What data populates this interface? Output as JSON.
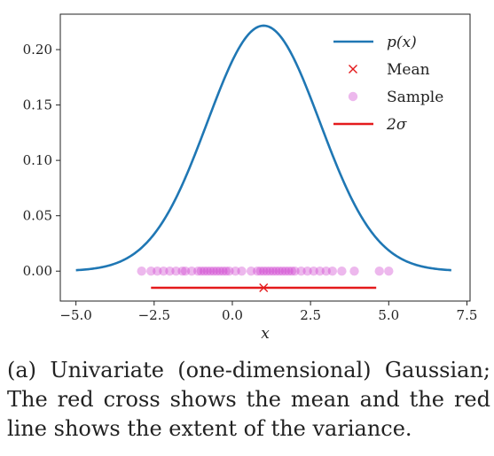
{
  "chart_data": {
    "type": "line",
    "title": "",
    "xlabel": "x",
    "ylabel": "",
    "xlim": [
      -5.5,
      7.6
    ],
    "ylim": [
      -0.027,
      0.232
    ],
    "x_ticks": [
      {
        "value": -5.0,
        "label": "−5.0"
      },
      {
        "value": -2.5,
        "label": "−2.5"
      },
      {
        "value": 0.0,
        "label": "0.0"
      },
      {
        "value": 2.5,
        "label": "2.5"
      },
      {
        "value": 5.0,
        "label": "5.0"
      },
      {
        "value": 7.5,
        "label": "7.5"
      }
    ],
    "y_ticks": [
      {
        "value": 0.0,
        "label": "0.00"
      },
      {
        "value": 0.05,
        "label": "0.05"
      },
      {
        "value": 0.1,
        "label": "0.10"
      },
      {
        "value": 0.15,
        "label": "0.15"
      },
      {
        "value": 0.2,
        "label": "0.20"
      }
    ],
    "grid": false,
    "legend_position": "top-right",
    "density": {
      "name": "p(x)",
      "color": "#1f77b4",
      "mean": 1.0,
      "sigma": 1.8,
      "x_range": [
        -5.0,
        7.0
      ]
    },
    "mean_marker": {
      "name": "Mean",
      "x": 1.0,
      "y": -0.015,
      "color": "#e41a1c"
    },
    "sample": {
      "name": "Sample",
      "color": "#cc33cc",
      "y": 0.0,
      "x": [
        -2.9,
        -2.6,
        -2.4,
        -2.2,
        -2.0,
        -1.8,
        -1.6,
        -1.5,
        -1.3,
        -1.1,
        -1.0,
        -0.9,
        -0.8,
        -0.7,
        -0.6,
        -0.5,
        -0.4,
        -0.3,
        -0.2,
        -0.1,
        0.1,
        0.3,
        0.6,
        0.8,
        0.9,
        1.0,
        1.1,
        1.2,
        1.3,
        1.4,
        1.5,
        1.6,
        1.7,
        1.8,
        1.9,
        2.0,
        2.2,
        2.4,
        2.6,
        2.8,
        3.0,
        3.2,
        3.5,
        3.9,
        4.7,
        5.0
      ]
    },
    "two_sigma": {
      "name": "2σ",
      "x": [
        -2.6,
        4.6
      ],
      "y": -0.015,
      "color": "#e41a1c"
    },
    "legend": [
      {
        "label": "p(x)",
        "kind": "line",
        "color": "#1f77b4",
        "math": true
      },
      {
        "label": "Mean",
        "kind": "cross",
        "color": "#e41a1c",
        "math": false
      },
      {
        "label": "Sample",
        "kind": "dot",
        "color": "#cc33cc",
        "math": false
      },
      {
        "label": "2σ",
        "kind": "line",
        "color": "#e41a1c",
        "math": true
      }
    ]
  },
  "caption": "(a) Univariate (one-dimensional) Gaussian; The red cross shows the mean and the red line shows the extent of the variance."
}
